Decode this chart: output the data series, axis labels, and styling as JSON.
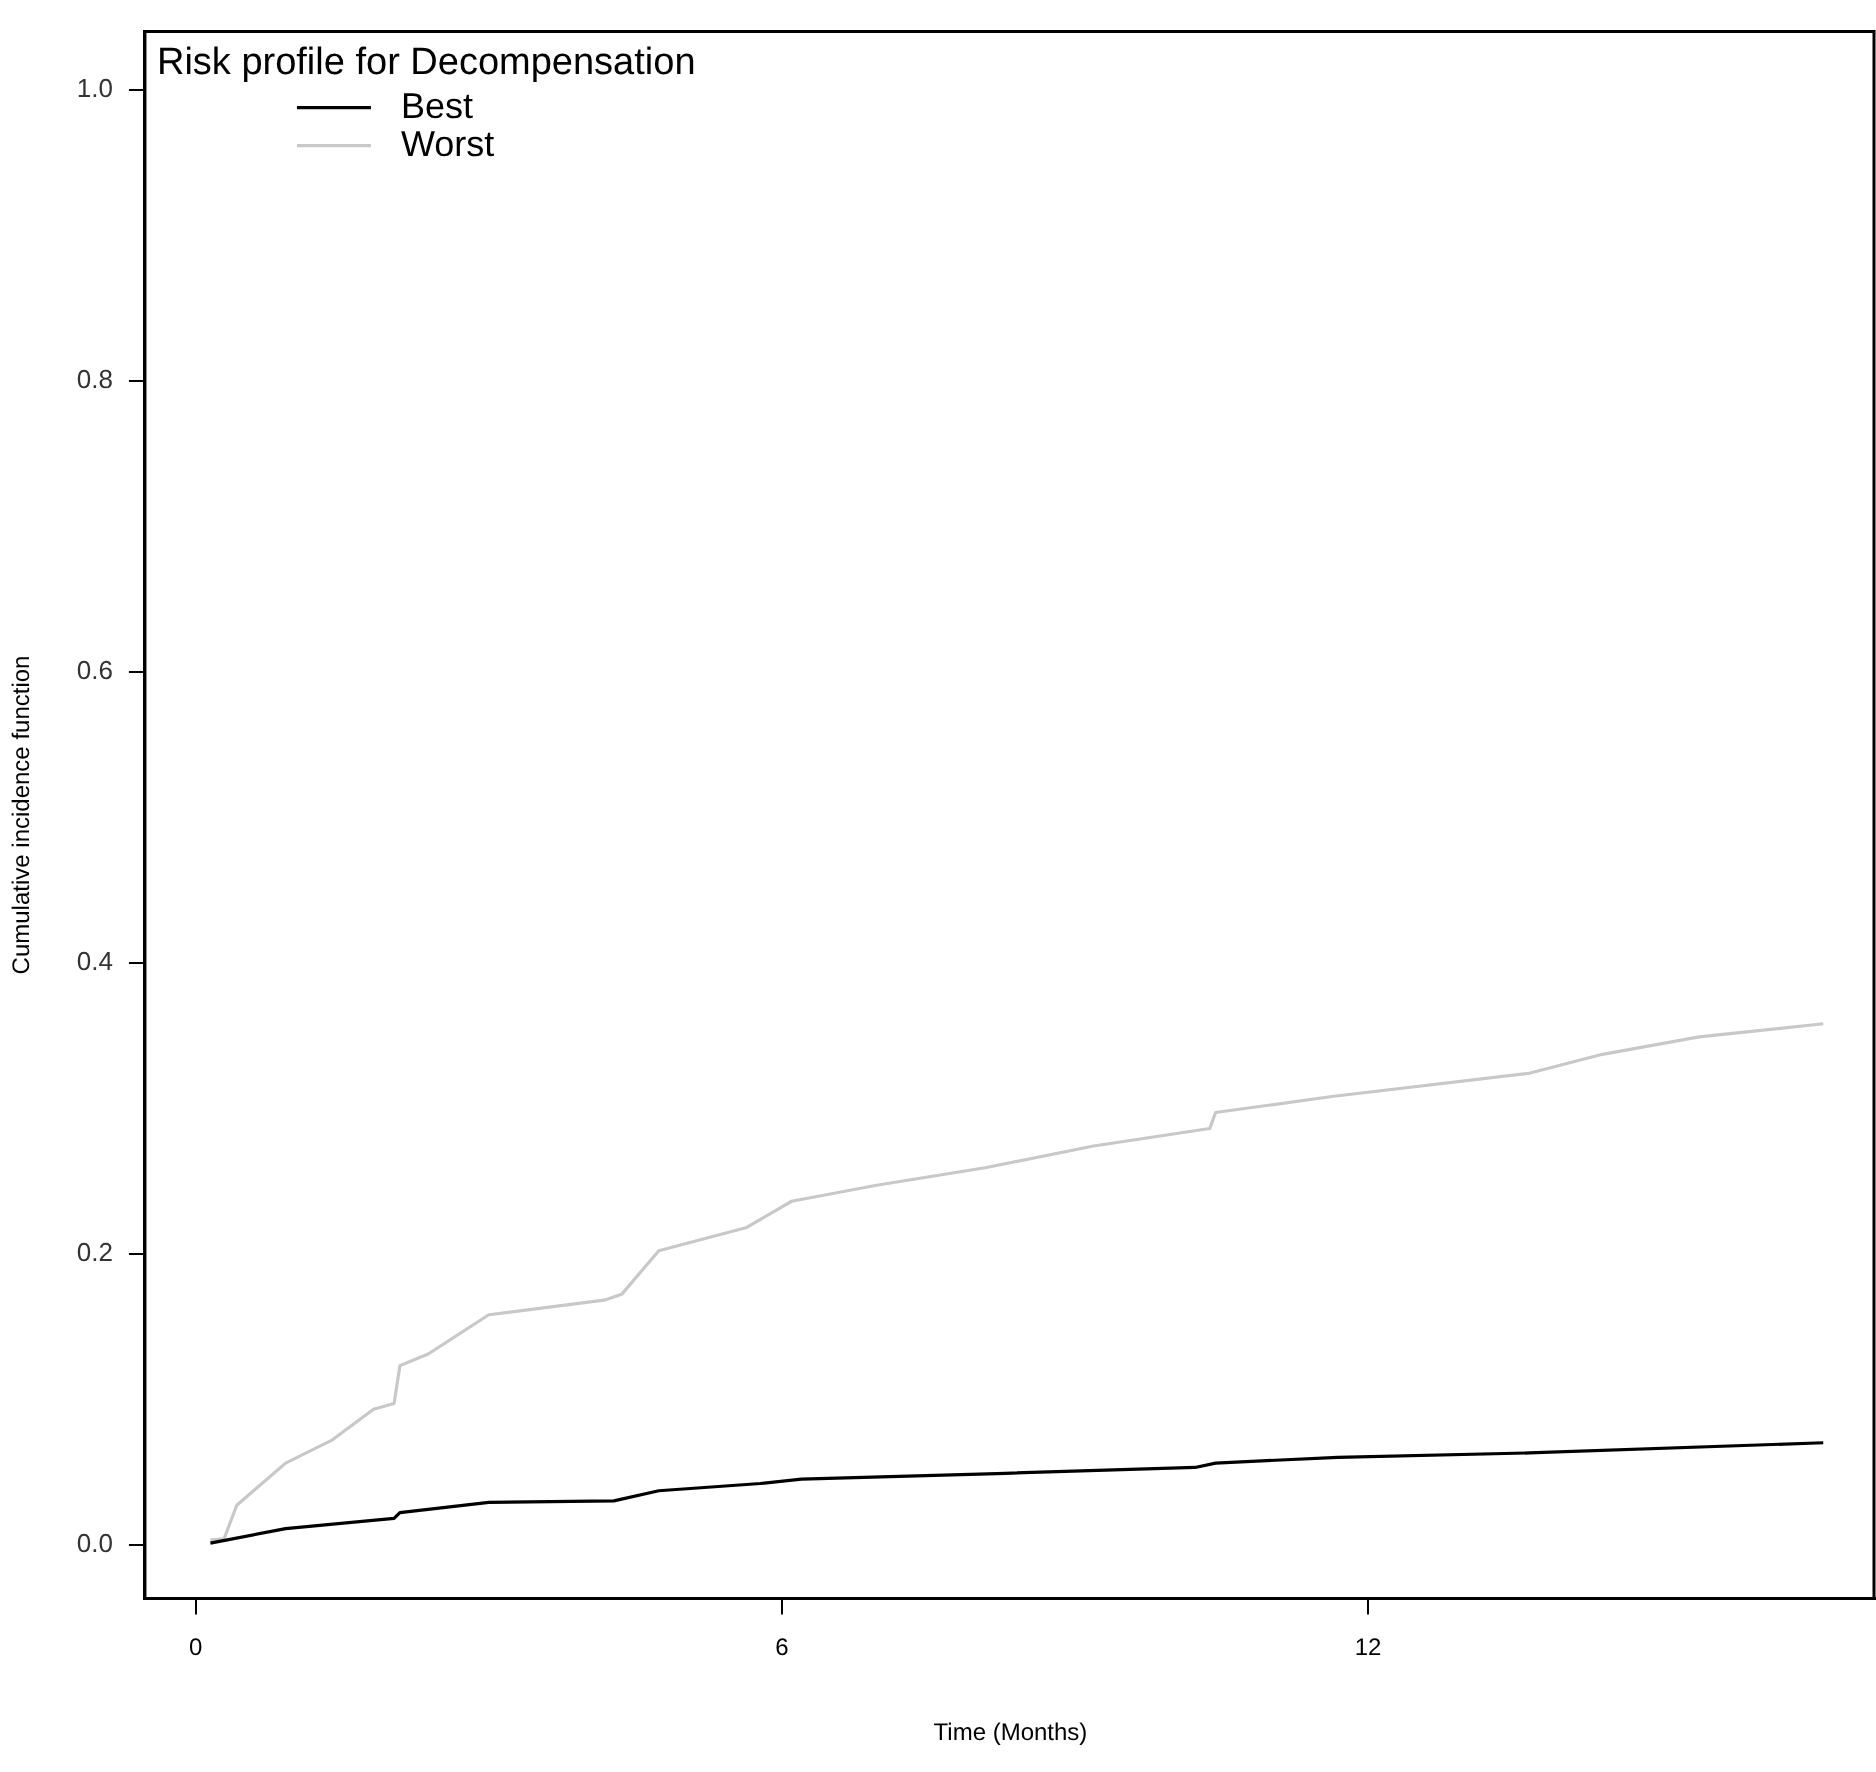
{
  "chart_data": {
    "type": "line",
    "xlabel": "Time (Months)",
    "ylabel": "Cumulative incidence function",
    "legend_title": "Risk profile for Decompensation",
    "legend": "top left",
    "grid": false,
    "marker": "none",
    "line_style": "solid",
    "xlim": [
      -0.52,
      17.2
    ],
    "xticks": [
      0,
      6,
      12
    ],
    "ylim": [
      -0.037,
      1.04
    ],
    "yticks": [
      {
        "value": 0,
        "label": "0.0"
      },
      0.2,
      0.4,
      0.6,
      0.8,
      {
        "value": 1,
        "label": "1.0"
      }
    ],
    "series": [
      {
        "name": "Best",
        "color": "#000000",
        "x": [
          0.15,
          0.92,
          2.03,
          2.09,
          3.0,
          4.28,
          4.74,
          5.78,
          6.2,
          8.29,
          10.23,
          10.44,
          11.69,
          13.65,
          16.66
        ],
        "values": [
          0.001,
          0.011,
          0.018,
          0.022,
          0.029,
          0.03,
          0.037,
          0.042,
          0.045,
          0.049,
          0.053,
          0.056,
          0.06,
          0.063,
          0.07
        ]
      },
      {
        "name": "Worst",
        "color": "#c8c8c8",
        "x": [
          0.15,
          0.29,
          0.42,
          0.92,
          1.4,
          1.82,
          2.03,
          2.09,
          2.38,
          3.0,
          4.18,
          4.36,
          4.74,
          5.64,
          6.1,
          6.97,
          8.08,
          9.19,
          10.38,
          10.44,
          11.63,
          13.65,
          14.4,
          15.39,
          16.66
        ],
        "values": [
          0.003,
          0.004,
          0.027,
          0.056,
          0.072,
          0.093,
          0.097,
          0.123,
          0.131,
          0.158,
          0.168,
          0.172,
          0.202,
          0.218,
          0.236,
          0.247,
          0.259,
          0.274,
          0.286,
          0.297,
          0.308,
          0.324,
          0.337,
          0.349,
          0.358
        ]
      }
    ]
  }
}
